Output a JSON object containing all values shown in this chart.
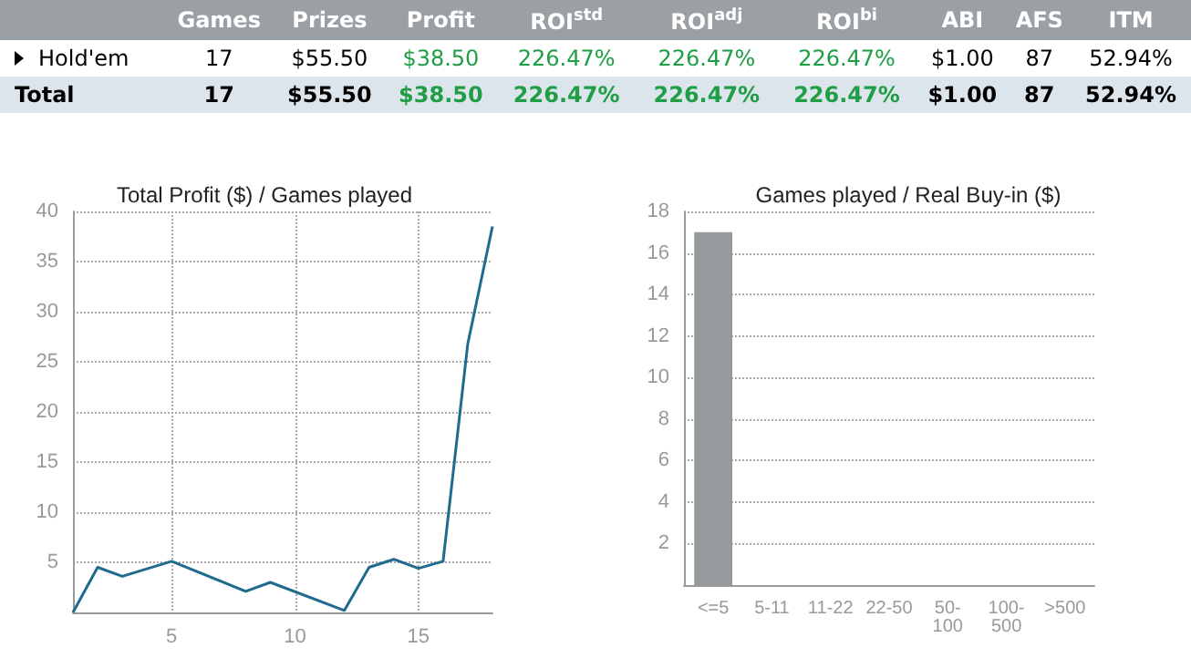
{
  "chart_data": [
    {
      "type": "other",
      "categories": [
        null,
        "Games",
        "Prizes",
        "Profit",
        "ROI$^{std}$",
        "ROI$^{adj}$",
        "ROI$^{bi}$",
        "ABI",
        "AFS",
        "ITM"
      ],
      "y_categories": [
        "Hold'em",
        "Total"
      ],
      "cell_labels": [
        [
          "17",
          "$55.50",
          "$38.50",
          "226.47%",
          "226.47%",
          "226.47%",
          "$1.00",
          "87",
          "52.94%"
        ],
        [
          "17",
          "$55.50",
          "$38.50",
          "226.47%",
          "226.47%",
          "226.47%",
          "$1.00",
          "87",
          "52.94%"
        ]
      ],
      "color": "#1f9e45"
    },
    {
      "type": "line",
      "title": "Total Profit ($) / Games played",
      "x": [
        1,
        2,
        3,
        5,
        8,
        9,
        12,
        13,
        14,
        15,
        16,
        17,
        18
      ],
      "values": [
        0,
        4.5,
        3.6,
        5.1,
        2.1,
        3.0,
        0.2,
        4.5,
        5.3,
        4.4,
        5.1,
        26.8,
        38.5
      ],
      "color": "#1f6b8e",
      "xlim": [
        1,
        18
      ],
      "xticks": [
        5,
        10,
        15
      ],
      "ylim": [
        0,
        40
      ],
      "yticks": [
        5,
        10,
        15,
        20,
        25,
        30,
        35,
        40
      ],
      "grid": true,
      "marker": "none",
      "line_style": "solid"
    },
    {
      "type": "bar",
      "title": "Games played / Real Buy-in ($)",
      "categories": [
        "<=5",
        "5-11",
        "11-22",
        "22-50",
        "50-100",
        "100-500",
        ">500"
      ],
      "values": [
        17,
        null,
        null,
        null,
        null,
        null,
        null
      ],
      "color": "#959a9d",
      "ylim": [
        0,
        18
      ],
      "yticks": [
        2,
        4,
        6,
        8,
        10,
        12,
        14,
        16,
        18
      ],
      "grid": "y"
    }
  ]
}
